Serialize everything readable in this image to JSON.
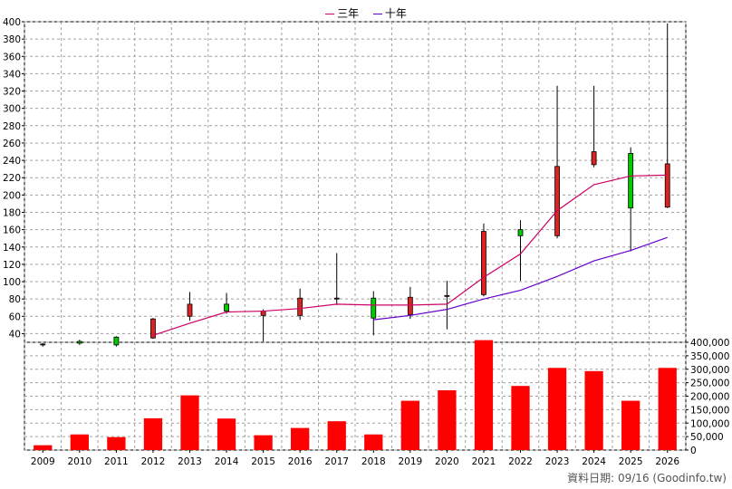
{
  "legend": {
    "ma3_label": "三年",
    "ma10_label": "十年"
  },
  "source_text": "資料日期: 09/16 (Goodinfo.tw)",
  "colors": {
    "up": "#00cc00",
    "down": "#dd2222",
    "ma3": "#cc0066",
    "ma10": "#6600cc",
    "volume": "#ff0000",
    "grid": "#a0a0a0"
  },
  "chart_data": [
    {
      "type": "candlestick",
      "categories": [
        "2009",
        "2010",
        "2011",
        "2012",
        "2013",
        "2014",
        "2015",
        "2016",
        "2017",
        "2018",
        "2019",
        "2020",
        "2021",
        "2022",
        "2023",
        "2024",
        "2025",
        "2026"
      ],
      "ylim": [
        30,
        400
      ],
      "yticks": [
        40,
        60,
        80,
        100,
        120,
        140,
        160,
        180,
        200,
        220,
        240,
        260,
        280,
        300,
        320,
        340,
        360,
        380,
        400
      ],
      "grid": true,
      "candles": [
        {
          "open": 28,
          "close": 27,
          "high": 29,
          "low": 25
        },
        {
          "open": 29,
          "close": 31,
          "high": 33,
          "low": 27
        },
        {
          "open": 27,
          "close": 36,
          "high": 37,
          "low": 25
        },
        {
          "open": 57,
          "close": 35,
          "high": 58,
          "low": 34
        },
        {
          "open": 74,
          "close": 60,
          "high": 88,
          "low": 55
        },
        {
          "open": 66,
          "close": 74,
          "high": 87,
          "low": 63
        },
        {
          "open": 66,
          "close": 61,
          "high": 68,
          "low": 31
        },
        {
          "open": 81,
          "close": 61,
          "high": 92,
          "low": 56
        },
        {
          "open": 81,
          "close": 80,
          "high": 133,
          "low": 73
        },
        {
          "open": 58,
          "close": 81,
          "high": 89,
          "low": 38
        },
        {
          "open": 82,
          "close": 62,
          "high": 94,
          "low": 57
        },
        {
          "open": 84,
          "close": 83,
          "high": 101,
          "low": 45
        },
        {
          "open": 158,
          "close": 85,
          "high": 167,
          "low": 83
        },
        {
          "open": 153,
          "close": 160,
          "high": 171,
          "low": 101
        },
        {
          "open": 233,
          "close": 153,
          "high": 326,
          "low": 150
        },
        {
          "open": 250,
          "close": 235,
          "high": 326,
          "low": 232
        },
        {
          "open": 185,
          "close": 248,
          "high": 255,
          "low": 135
        },
        {
          "open": 236,
          "close": 186,
          "high": 398,
          "low": 185
        }
      ],
      "series": [
        {
          "name": "三年",
          "values": [
            null,
            null,
            null,
            38,
            52,
            65,
            66,
            69,
            74,
            73,
            73,
            74,
            105,
            132,
            182,
            212,
            222,
            223
          ]
        },
        {
          "name": "十年",
          "values": [
            null,
            null,
            null,
            null,
            null,
            null,
            null,
            null,
            null,
            56,
            61,
            68,
            80,
            90,
            106,
            124,
            136,
            151
          ]
        }
      ]
    },
    {
      "type": "bar",
      "categories": [
        "2009",
        "2010",
        "2011",
        "2012",
        "2013",
        "2014",
        "2015",
        "2016",
        "2017",
        "2018",
        "2019",
        "2020",
        "2021",
        "2022",
        "2023",
        "2024",
        "2025",
        "2026"
      ],
      "values": [
        18000,
        58000,
        48000,
        118000,
        203000,
        117000,
        55000,
        82000,
        107000,
        58000,
        183000,
        222000,
        408000,
        238000,
        305000,
        293000,
        183000,
        305000
      ],
      "ylim": [
        0,
        400000
      ],
      "ytick_labels": [
        "0",
        "50,000",
        "100,000",
        "150,000",
        "200,000",
        "250,000",
        "300,000",
        "350,000",
        "400,000"
      ],
      "grid": true
    }
  ]
}
